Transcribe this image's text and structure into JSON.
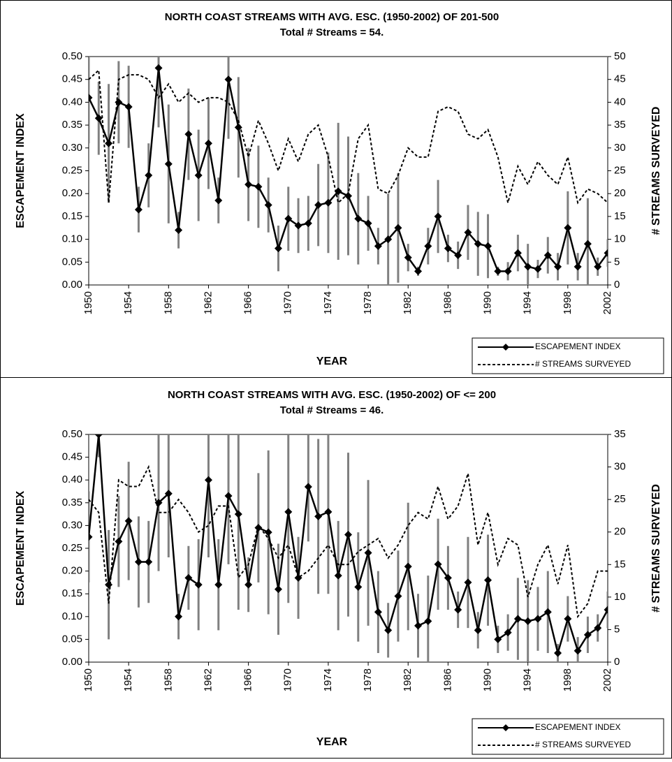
{
  "chart_data": [
    {
      "type": "line",
      "title": "NORTH COAST STREAMS WITH AVG. ESC. (1950-2002) OF 201-500",
      "subtitle": "Total # Streams = 54.",
      "x_label": "YEAR",
      "y_label": "ESCAPEMENT INDEX",
      "y2_label": "# STREAMS SURVEYED",
      "x": [
        1950,
        1951,
        1952,
        1953,
        1954,
        1955,
        1956,
        1957,
        1958,
        1959,
        1960,
        1961,
        1962,
        1963,
        1964,
        1965,
        1966,
        1967,
        1968,
        1969,
        1970,
        1971,
        1972,
        1973,
        1974,
        1975,
        1976,
        1977,
        1978,
        1979,
        1980,
        1981,
        1982,
        1983,
        1984,
        1985,
        1986,
        1987,
        1988,
        1989,
        1990,
        1991,
        1992,
        1993,
        1994,
        1995,
        1996,
        1997,
        1998,
        1999,
        2000,
        2001,
        2002
      ],
      "xlim": [
        1950,
        2002
      ],
      "xticks": [
        1950,
        1954,
        1958,
        1962,
        1966,
        1970,
        1974,
        1978,
        1982,
        1986,
        1990,
        1994,
        1998,
        2002
      ],
      "ylim": [
        0,
        0.5
      ],
      "yticks": [
        {
          "value": 0,
          "label": "0.00"
        },
        {
          "value": 0.05,
          "label": "0.05"
        },
        {
          "value": 0.1,
          "label": "0.10"
        },
        {
          "value": 0.15,
          "label": "0.15"
        },
        {
          "value": 0.2,
          "label": "0.20"
        },
        {
          "value": 0.25,
          "label": "0.25"
        },
        {
          "value": 0.3,
          "label": "0.30"
        },
        {
          "value": 0.35,
          "label": "0.35"
        },
        {
          "value": 0.4,
          "label": "0.40"
        },
        {
          "value": 0.45,
          "label": "0.45"
        },
        {
          "value": 0.5,
          "label": "0.50"
        }
      ],
      "y2lim": [
        0,
        50
      ],
      "y2ticks": [
        0,
        5,
        10,
        15,
        20,
        25,
        30,
        35,
        40,
        45,
        50
      ],
      "legend": "bottom-right",
      "error_color": "#808080",
      "series": [
        {
          "name": "ESCAPEMENT INDEX",
          "color": "#000000",
          "style": "solid",
          "marker": "diamond",
          "values": [
            0.41,
            0.365,
            0.31,
            0.4,
            0.39,
            0.165,
            0.24,
            0.475,
            0.265,
            0.12,
            0.33,
            0.24,
            0.31,
            0.185,
            0.45,
            0.345,
            0.22,
            0.215,
            0.175,
            0.08,
            0.145,
            0.13,
            0.135,
            0.175,
            0.18,
            0.205,
            0.195,
            0.145,
            0.135,
            0.085,
            0.1,
            0.125,
            0.06,
            0.03,
            0.085,
            0.15,
            0.08,
            0.065,
            0.115,
            0.09,
            0.085,
            0.03,
            0.03,
            0.07,
            0.04,
            0.035,
            0.065,
            0.04,
            0.125,
            0.04,
            0.09,
            0.04,
            0.07
          ],
          "errors": [
            0.1,
            0.08,
            0.13,
            0.09,
            0.09,
            0.05,
            0.07,
            0.13,
            0.13,
            0.04,
            0.1,
            0.1,
            0.1,
            0.05,
            0.13,
            0.11,
            0.08,
            0.09,
            0.06,
            0.05,
            0.07,
            0.06,
            0.06,
            0.09,
            0.11,
            0.15,
            0.13,
            0.1,
            0.06,
            0.04,
            0.1,
            0.12,
            0.03,
            0.01,
            0.04,
            0.08,
            0.03,
            0.03,
            0.06,
            0.07,
            0.07,
            0.01,
            0.02,
            0.04,
            0.05,
            0.02,
            0.04,
            0.03,
            0.08,
            0.03,
            0.1,
            0.02,
            0.03
          ]
        },
        {
          "name": "# STREAMS SURVEYED",
          "color": "#000000",
          "style": "dashed",
          "axis": "y2",
          "values": [
            45,
            47,
            18,
            45,
            46,
            46,
            45,
            41,
            44,
            40,
            42,
            40,
            41,
            41,
            40,
            36,
            28,
            36,
            31,
            25,
            32,
            27,
            33,
            35,
            28,
            18,
            20,
            32,
            35,
            21,
            20,
            24,
            30,
            28,
            28,
            38,
            39,
            38,
            33,
            32,
            34,
            28,
            18,
            26,
            22,
            27,
            24,
            22,
            28,
            18,
            21,
            20,
            18
          ]
        }
      ]
    },
    {
      "type": "line",
      "title": "NORTH COAST STREAMS WITH AVG. ESC. (1950-2002) OF <= 200",
      "subtitle": "Total # Streams = 46.",
      "x_label": "YEAR",
      "y_label": "ESCAPEMENT INDEX",
      "y2_label": "# STREAMS SURVEYED",
      "x": [
        1950,
        1951,
        1952,
        1953,
        1954,
        1955,
        1956,
        1957,
        1958,
        1959,
        1960,
        1961,
        1962,
        1963,
        1964,
        1965,
        1966,
        1967,
        1968,
        1969,
        1970,
        1971,
        1972,
        1973,
        1974,
        1975,
        1976,
        1977,
        1978,
        1979,
        1980,
        1981,
        1982,
        1983,
        1984,
        1985,
        1986,
        1987,
        1988,
        1989,
        1990,
        1991,
        1992,
        1993,
        1994,
        1995,
        1996,
        1997,
        1998,
        1999,
        2000,
        2001,
        2002
      ],
      "xlim": [
        1950,
        2002
      ],
      "xticks": [
        1950,
        1954,
        1958,
        1962,
        1966,
        1970,
        1974,
        1978,
        1982,
        1986,
        1990,
        1994,
        1998,
        2002
      ],
      "ylim": [
        0,
        0.5
      ],
      "yticks": [
        {
          "value": 0,
          "label": "0.00"
        },
        {
          "value": 0.05,
          "label": "0.05"
        },
        {
          "value": 0.1,
          "label": "0.10"
        },
        {
          "value": 0.15,
          "label": "0.15"
        },
        {
          "value": 0.2,
          "label": "0.20"
        },
        {
          "value": 0.25,
          "label": "0.25"
        },
        {
          "value": 0.3,
          "label": "0.30"
        },
        {
          "value": 0.35,
          "label": "0.35"
        },
        {
          "value": 0.4,
          "label": "0.40"
        },
        {
          "value": 0.45,
          "label": "0.45"
        },
        {
          "value": 0.5,
          "label": "0.50"
        }
      ],
      "y2lim": [
        0,
        35
      ],
      "y2ticks": [
        0,
        5,
        10,
        15,
        20,
        25,
        30,
        35
      ],
      "legend": "bottom-right",
      "error_color": "#808080",
      "series": [
        {
          "name": "ESCAPEMENT INDEX",
          "color": "#000000",
          "style": "solid",
          "marker": "diamond",
          "values": [
            0.275,
            0.5,
            0.17,
            0.265,
            0.31,
            0.22,
            0.22,
            0.35,
            0.37,
            0.1,
            0.185,
            0.17,
            0.4,
            0.17,
            0.365,
            0.325,
            0.17,
            0.295,
            0.285,
            0.16,
            0.33,
            0.185,
            0.385,
            0.32,
            0.33,
            0.19,
            0.28,
            0.165,
            0.24,
            0.11,
            0.07,
            0.145,
            0.21,
            0.08,
            0.09,
            0.215,
            0.185,
            0.115,
            0.175,
            0.07,
            0.18,
            0.05,
            0.065,
            0.095,
            0.09,
            0.095,
            0.11,
            0.02,
            0.095,
            0.025,
            0.06,
            0.075,
            0.115
          ],
          "errors": [
            0.1,
            0.05,
            0.12,
            0.1,
            0.13,
            0.1,
            0.09,
            0.15,
            0.14,
            0.05,
            0.07,
            0.1,
            0.17,
            0.1,
            0.15,
            0.21,
            0.06,
            0.12,
            0.18,
            0.1,
            0.2,
            0.09,
            0.12,
            0.17,
            0.18,
            0.12,
            0.18,
            0.12,
            0.16,
            0.09,
            0.06,
            0.1,
            0.14,
            0.07,
            0.1,
            0.1,
            0.07,
            0.04,
            0.1,
            0.04,
            0.1,
            0.03,
            0.04,
            0.09,
            0.09,
            0.07,
            0.09,
            0.02,
            0.05,
            0.03,
            0.04,
            0.03,
            0.04
          ]
        },
        {
          "name": "# STREAMS SURVEYED",
          "color": "#000000",
          "style": "dashed",
          "axis": "y2",
          "values": [
            25,
            23,
            9,
            28,
            27,
            27,
            30,
            23,
            23,
            25,
            23,
            20,
            21,
            24,
            24,
            13,
            15,
            21,
            19,
            16,
            18,
            13,
            14,
            16,
            18,
            15,
            15,
            17,
            18,
            19,
            16,
            18,
            21,
            23,
            22,
            27,
            22,
            24,
            29,
            18,
            23,
            15,
            19,
            18,
            10,
            15,
            18,
            12,
            18,
            7,
            9,
            14,
            14
          ]
        }
      ]
    }
  ]
}
